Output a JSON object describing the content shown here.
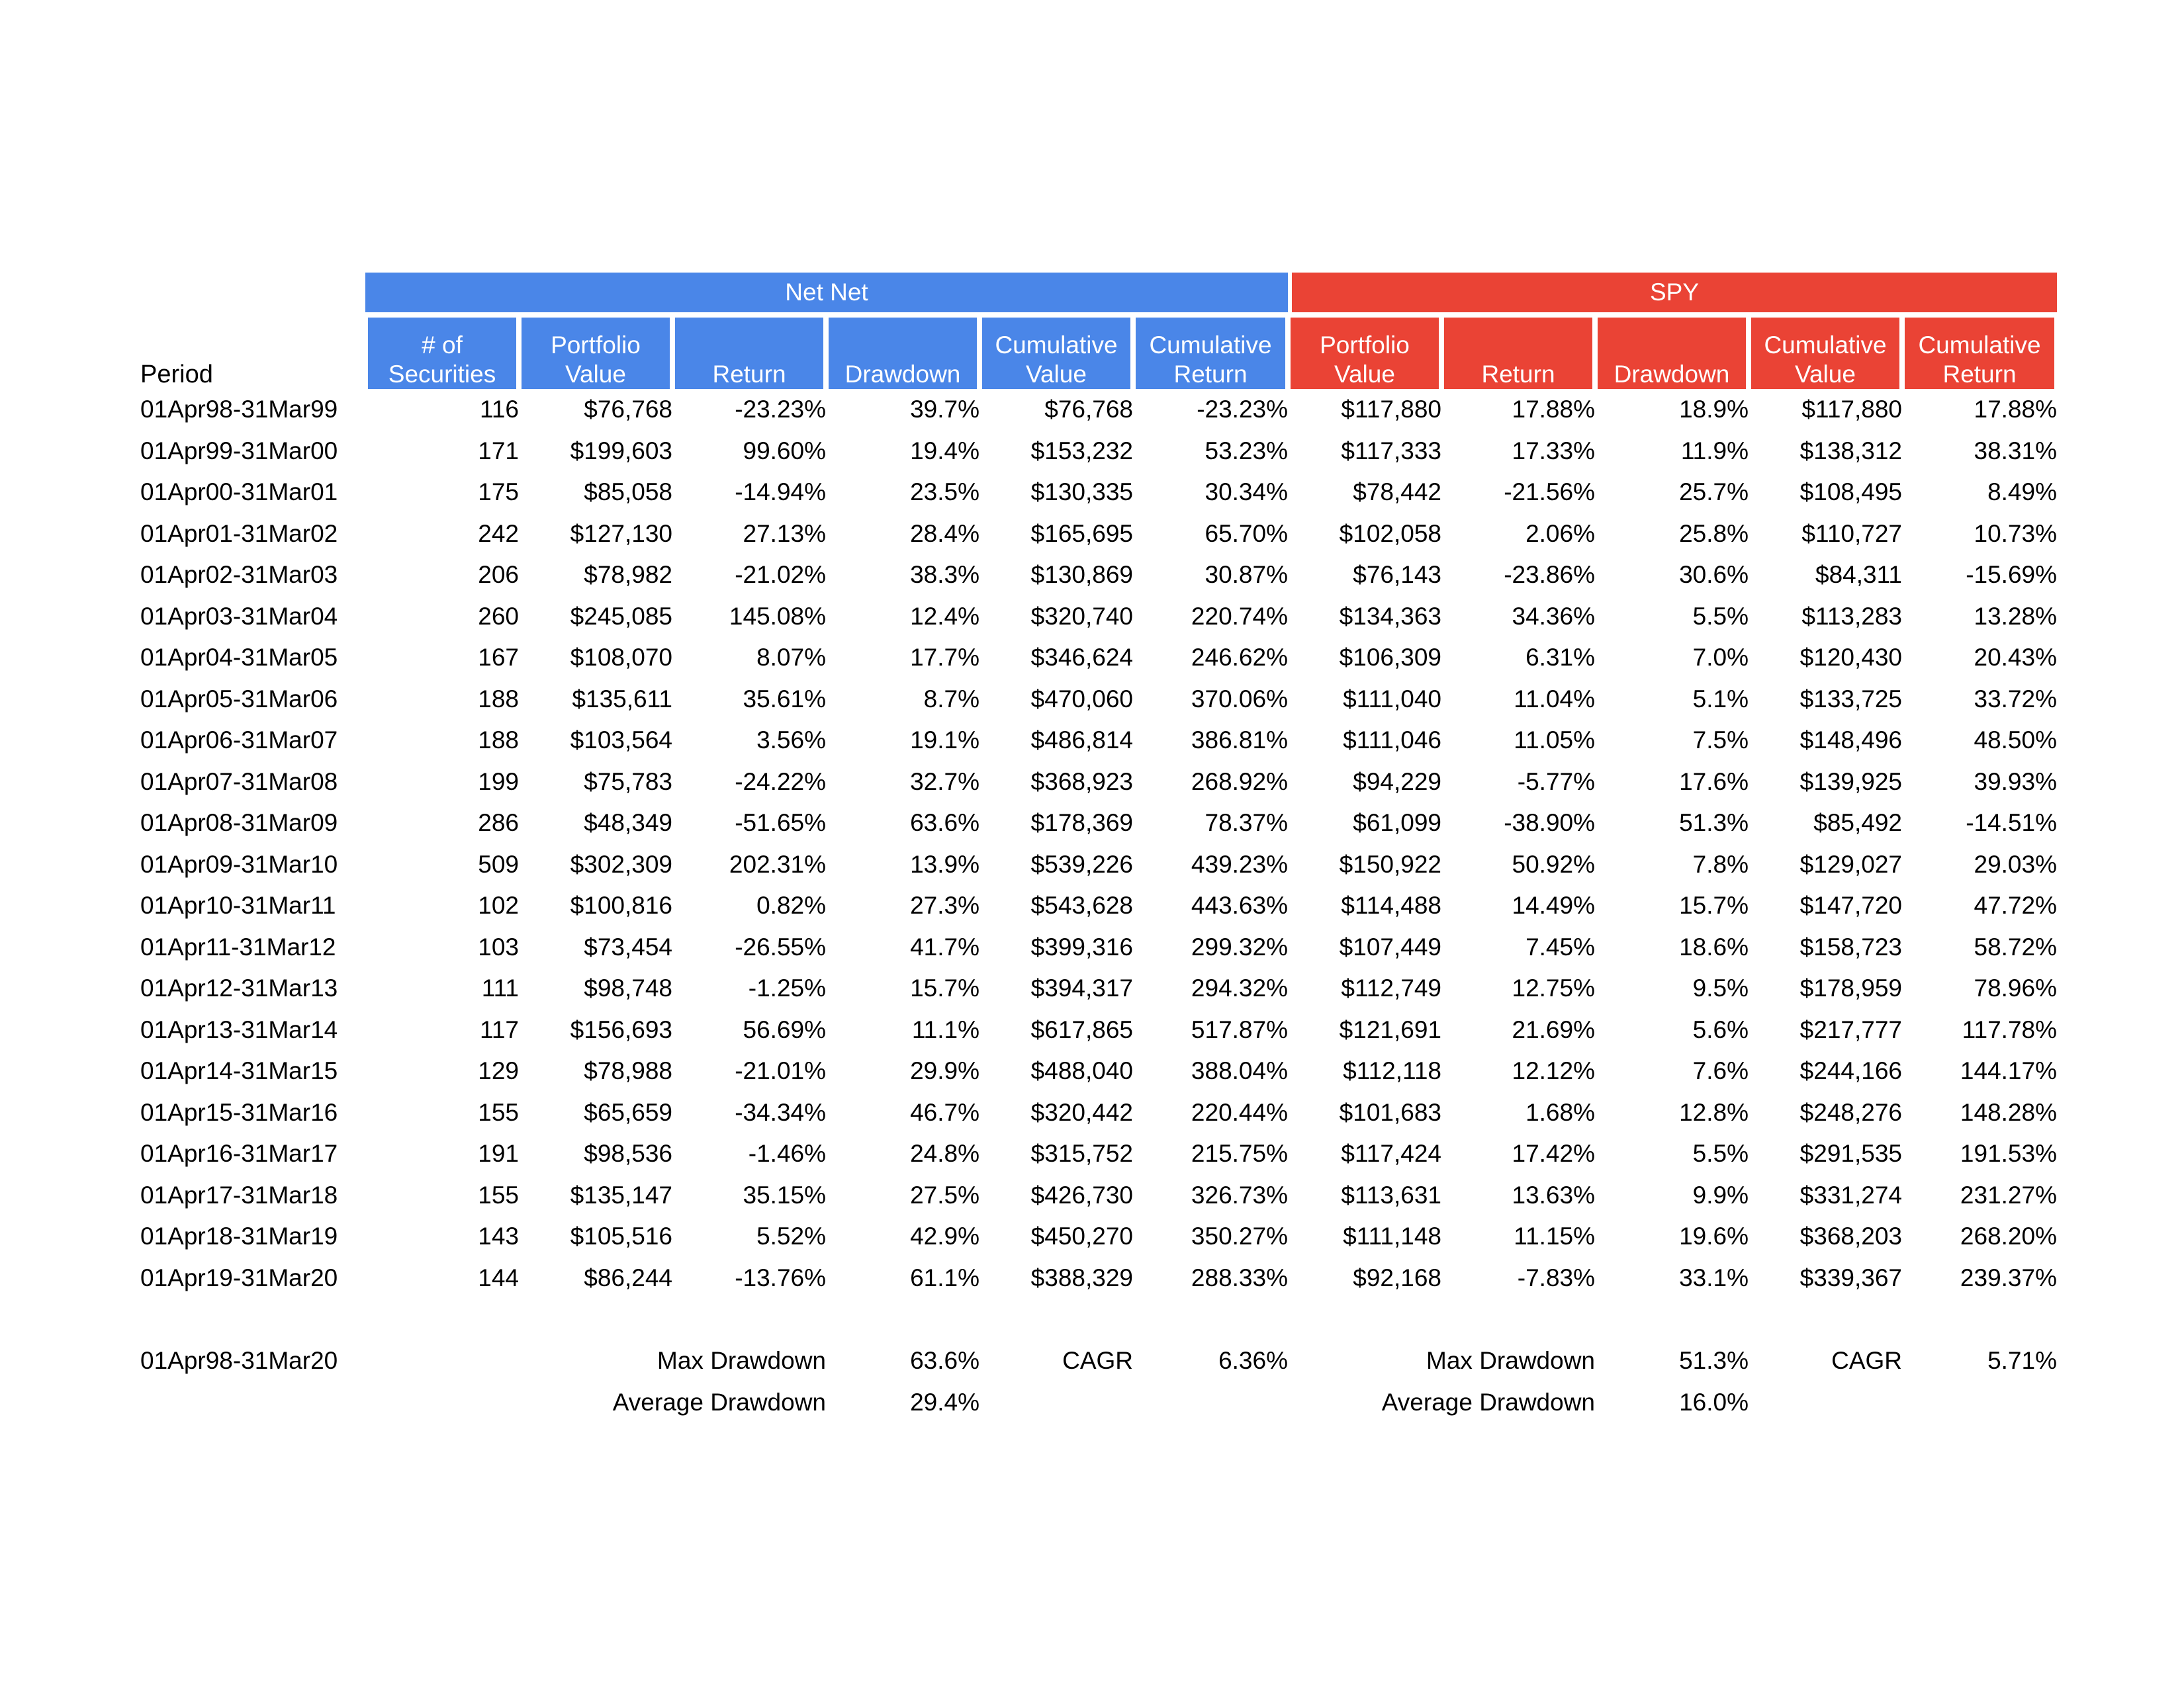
{
  "groups": {
    "net_net": "Net Net",
    "spy": "SPY"
  },
  "headers": {
    "period": "Period",
    "net_net": [
      [
        "# of",
        "Securities"
      ],
      [
        "Portfolio",
        "Value"
      ],
      [
        "Return"
      ],
      [
        "Drawdown"
      ],
      [
        "Cumulative",
        "Value"
      ],
      [
        "Cumulative",
        "Return"
      ]
    ],
    "spy": [
      [
        "Portfolio",
        "Value"
      ],
      [
        "Return"
      ],
      [
        "Drawdown"
      ],
      [
        "Cumulative",
        "Value"
      ],
      [
        "Cumulative",
        "Return"
      ]
    ]
  },
  "rows": [
    [
      "01Apr98-31Mar99",
      "116",
      "$76,768",
      "-23.23%",
      "39.7%",
      "$76,768",
      "-23.23%",
      "$117,880",
      "17.88%",
      "18.9%",
      "$117,880",
      "17.88%"
    ],
    [
      "01Apr99-31Mar00",
      "171",
      "$199,603",
      "99.60%",
      "19.4%",
      "$153,232",
      "53.23%",
      "$117,333",
      "17.33%",
      "11.9%",
      "$138,312",
      "38.31%"
    ],
    [
      "01Apr00-31Mar01",
      "175",
      "$85,058",
      "-14.94%",
      "23.5%",
      "$130,335",
      "30.34%",
      "$78,442",
      "-21.56%",
      "25.7%",
      "$108,495",
      "8.49%"
    ],
    [
      "01Apr01-31Mar02",
      "242",
      "$127,130",
      "27.13%",
      "28.4%",
      "$165,695",
      "65.70%",
      "$102,058",
      "2.06%",
      "25.8%",
      "$110,727",
      "10.73%"
    ],
    [
      "01Apr02-31Mar03",
      "206",
      "$78,982",
      "-21.02%",
      "38.3%",
      "$130,869",
      "30.87%",
      "$76,143",
      "-23.86%",
      "30.6%",
      "$84,311",
      "-15.69%"
    ],
    [
      "01Apr03-31Mar04",
      "260",
      "$245,085",
      "145.08%",
      "12.4%",
      "$320,740",
      "220.74%",
      "$134,363",
      "34.36%",
      "5.5%",
      "$113,283",
      "13.28%"
    ],
    [
      "01Apr04-31Mar05",
      "167",
      "$108,070",
      "8.07%",
      "17.7%",
      "$346,624",
      "246.62%",
      "$106,309",
      "6.31%",
      "7.0%",
      "$120,430",
      "20.43%"
    ],
    [
      "01Apr05-31Mar06",
      "188",
      "$135,611",
      "35.61%",
      "8.7%",
      "$470,060",
      "370.06%",
      "$111,040",
      "11.04%",
      "5.1%",
      "$133,725",
      "33.72%"
    ],
    [
      "01Apr06-31Mar07",
      "188",
      "$103,564",
      "3.56%",
      "19.1%",
      "$486,814",
      "386.81%",
      "$111,046",
      "11.05%",
      "7.5%",
      "$148,496",
      "48.50%"
    ],
    [
      "01Apr07-31Mar08",
      "199",
      "$75,783",
      "-24.22%",
      "32.7%",
      "$368,923",
      "268.92%",
      "$94,229",
      "-5.77%",
      "17.6%",
      "$139,925",
      "39.93%"
    ],
    [
      "01Apr08-31Mar09",
      "286",
      "$48,349",
      "-51.65%",
      "63.6%",
      "$178,369",
      "78.37%",
      "$61,099",
      "-38.90%",
      "51.3%",
      "$85,492",
      "-14.51%"
    ],
    [
      "01Apr09-31Mar10",
      "509",
      "$302,309",
      "202.31%",
      "13.9%",
      "$539,226",
      "439.23%",
      "$150,922",
      "50.92%",
      "7.8%",
      "$129,027",
      "29.03%"
    ],
    [
      "01Apr10-31Mar11",
      "102",
      "$100,816",
      "0.82%",
      "27.3%",
      "$543,628",
      "443.63%",
      "$114,488",
      "14.49%",
      "15.7%",
      "$147,720",
      "47.72%"
    ],
    [
      "01Apr11-31Mar12",
      "103",
      "$73,454",
      "-26.55%",
      "41.7%",
      "$399,316",
      "299.32%",
      "$107,449",
      "7.45%",
      "18.6%",
      "$158,723",
      "58.72%"
    ],
    [
      "01Apr12-31Mar13",
      "111",
      "$98,748",
      "-1.25%",
      "15.7%",
      "$394,317",
      "294.32%",
      "$112,749",
      "12.75%",
      "9.5%",
      "$178,959",
      "78.96%"
    ],
    [
      "01Apr13-31Mar14",
      "117",
      "$156,693",
      "56.69%",
      "11.1%",
      "$617,865",
      "517.87%",
      "$121,691",
      "21.69%",
      "5.6%",
      "$217,777",
      "117.78%"
    ],
    [
      "01Apr14-31Mar15",
      "129",
      "$78,988",
      "-21.01%",
      "29.9%",
      "$488,040",
      "388.04%",
      "$112,118",
      "12.12%",
      "7.6%",
      "$244,166",
      "144.17%"
    ],
    [
      "01Apr15-31Mar16",
      "155",
      "$65,659",
      "-34.34%",
      "46.7%",
      "$320,442",
      "220.44%",
      "$101,683",
      "1.68%",
      "12.8%",
      "$248,276",
      "148.28%"
    ],
    [
      "01Apr16-31Mar17",
      "191",
      "$98,536",
      "-1.46%",
      "24.8%",
      "$315,752",
      "215.75%",
      "$117,424",
      "17.42%",
      "5.5%",
      "$291,535",
      "191.53%"
    ],
    [
      "01Apr17-31Mar18",
      "155",
      "$135,147",
      "35.15%",
      "27.5%",
      "$426,730",
      "326.73%",
      "$113,631",
      "13.63%",
      "9.9%",
      "$331,274",
      "231.27%"
    ],
    [
      "01Apr18-31Mar19",
      "143",
      "$105,516",
      "5.52%",
      "42.9%",
      "$450,270",
      "350.27%",
      "$111,148",
      "11.15%",
      "19.6%",
      "$368,203",
      "268.20%"
    ],
    [
      "01Apr19-31Mar20",
      "144",
      "$86,244",
      "-13.76%",
      "61.1%",
      "$388,329",
      "288.33%",
      "$92,168",
      "-7.83%",
      "33.1%",
      "$339,367",
      "239.37%"
    ]
  ],
  "summary": {
    "period": "01Apr98-31Mar20",
    "net_net": {
      "max_drawdown_label": "Max Drawdown",
      "max_drawdown": "63.6%",
      "cagr_label": "CAGR",
      "cagr": "6.36%",
      "avg_drawdown_label": "Average Drawdown",
      "avg_drawdown": "29.4%"
    },
    "spy": {
      "max_drawdown_label": "Max Drawdown",
      "max_drawdown": "51.3%",
      "cagr_label": "CAGR",
      "cagr": "5.71%",
      "avg_drawdown_label": "Average Drawdown",
      "avg_drawdown": "16.0%"
    }
  },
  "colors": {
    "net_net": "#4a86e8",
    "spy": "#ea4335"
  }
}
